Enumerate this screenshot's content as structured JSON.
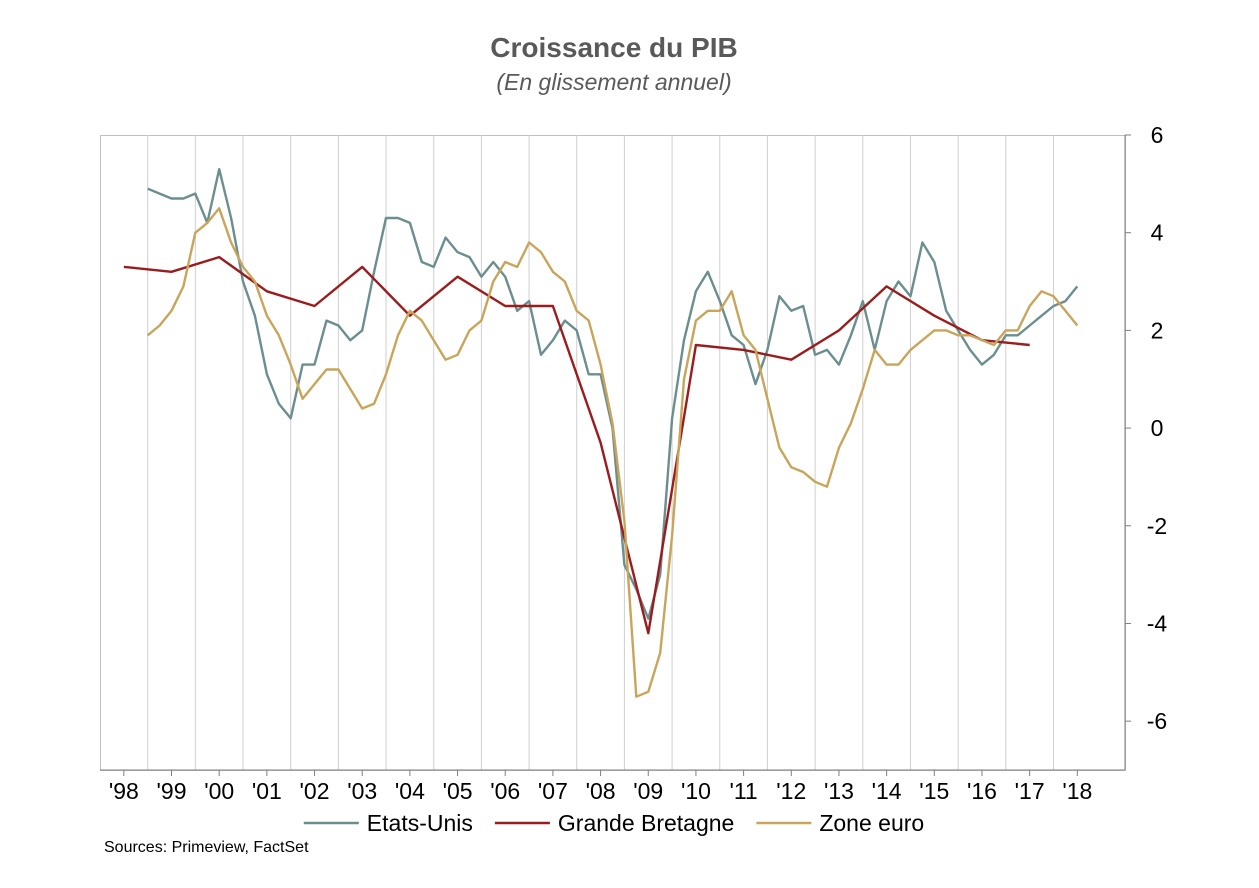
{
  "chart_data": {
    "type": "line",
    "title": "Croissance du PIB",
    "subtitle": "(En glissement annuel)",
    "source": "Sources: Primeview, FactSet",
    "xlabel": "",
    "ylabel": "",
    "x_range": [
      1997.5,
      2019.0
    ],
    "ylim": [
      -7,
      6
    ],
    "y_ticks": [
      6,
      4,
      2,
      0,
      -2,
      -4,
      -6
    ],
    "y_axis_position": "right",
    "x_tick_labels": [
      {
        "label": "'98",
        "x": 1998
      },
      {
        "label": "'99",
        "x": 1999
      },
      {
        "label": "'00",
        "x": 2000
      },
      {
        "label": "'01",
        "x": 2001
      },
      {
        "label": "'02",
        "x": 2002
      },
      {
        "label": "'03",
        "x": 2003
      },
      {
        "label": "'04",
        "x": 2004
      },
      {
        "label": "'05",
        "x": 2005
      },
      {
        "label": "'06",
        "x": 2006
      },
      {
        "label": "'07",
        "x": 2007
      },
      {
        "label": "'08",
        "x": 2008
      },
      {
        "label": "'09",
        "x": 2009
      },
      {
        "label": "'10",
        "x": 2010
      },
      {
        "label": "'11",
        "x": 2011
      },
      {
        "label": "'12",
        "x": 2012
      },
      {
        "label": "'13",
        "x": 2013
      },
      {
        "label": "'14",
        "x": 2014
      },
      {
        "label": "'15",
        "x": 2015
      },
      {
        "label": "'16",
        "x": 2016
      },
      {
        "label": "'17",
        "x": 2017
      },
      {
        "label": "'18",
        "x": 2018
      }
    ],
    "vertical_gridlines_at": [
      1998.5,
      1999.5,
      2000.5,
      2001.5,
      2002.5,
      2003.5,
      2004.5,
      2005.5,
      2006.5,
      2007.5,
      2008.5,
      2009.5,
      2010.5,
      2011.5,
      2012.5,
      2013.5,
      2014.5,
      2015.5,
      2016.5,
      2017.5
    ],
    "legend_position": "bottom",
    "series": [
      {
        "name": "Etats-Unis",
        "color": "#6B8E8E",
        "points": [
          [
            1998.5,
            4.9
          ],
          [
            1998.75,
            4.8
          ],
          [
            1999.0,
            4.7
          ],
          [
            1999.25,
            4.7
          ],
          [
            1999.5,
            4.8
          ],
          [
            1999.75,
            4.2
          ],
          [
            2000.0,
            5.3
          ],
          [
            2000.25,
            4.3
          ],
          [
            2000.5,
            3.0
          ],
          [
            2000.75,
            2.3
          ],
          [
            2001.0,
            1.1
          ],
          [
            2001.25,
            0.5
          ],
          [
            2001.5,
            0.2
          ],
          [
            2001.75,
            1.3
          ],
          [
            2002.0,
            1.3
          ],
          [
            2002.25,
            2.2
          ],
          [
            2002.5,
            2.1
          ],
          [
            2002.75,
            1.8
          ],
          [
            2003.0,
            2.0
          ],
          [
            2003.25,
            3.2
          ],
          [
            2003.5,
            4.3
          ],
          [
            2003.75,
            4.3
          ],
          [
            2004.0,
            4.2
          ],
          [
            2004.25,
            3.4
          ],
          [
            2004.5,
            3.3
          ],
          [
            2004.75,
            3.9
          ],
          [
            2005.0,
            3.6
          ],
          [
            2005.25,
            3.5
          ],
          [
            2005.5,
            3.1
          ],
          [
            2005.75,
            3.4
          ],
          [
            2006.0,
            3.1
          ],
          [
            2006.25,
            2.4
          ],
          [
            2006.5,
            2.6
          ],
          [
            2006.75,
            1.5
          ],
          [
            2007.0,
            1.8
          ],
          [
            2007.25,
            2.2
          ],
          [
            2007.5,
            2.0
          ],
          [
            2007.75,
            1.1
          ],
          [
            2008.0,
            1.1
          ],
          [
            2008.25,
            0.0
          ],
          [
            2008.5,
            -2.8
          ],
          [
            2008.75,
            -3.3
          ],
          [
            2009.0,
            -3.9
          ],
          [
            2009.25,
            -3.0
          ],
          [
            2009.5,
            0.2
          ],
          [
            2009.75,
            1.8
          ],
          [
            2010.0,
            2.8
          ],
          [
            2010.25,
            3.2
          ],
          [
            2010.5,
            2.6
          ],
          [
            2010.75,
            1.9
          ],
          [
            2011.0,
            1.7
          ],
          [
            2011.25,
            0.9
          ],
          [
            2011.5,
            1.6
          ],
          [
            2011.75,
            2.7
          ],
          [
            2012.0,
            2.4
          ],
          [
            2012.25,
            2.5
          ],
          [
            2012.5,
            1.5
          ],
          [
            2012.75,
            1.6
          ],
          [
            2013.0,
            1.3
          ],
          [
            2013.25,
            1.9
          ],
          [
            2013.5,
            2.6
          ],
          [
            2013.75,
            1.6
          ],
          [
            2014.0,
            2.6
          ],
          [
            2014.25,
            3.0
          ],
          [
            2014.5,
            2.7
          ],
          [
            2014.75,
            3.8
          ],
          [
            2015.0,
            3.4
          ],
          [
            2015.25,
            2.4
          ],
          [
            2015.5,
            2.0
          ],
          [
            2015.75,
            1.6
          ],
          [
            2016.0,
            1.3
          ],
          [
            2016.25,
            1.5
          ],
          [
            2016.5,
            1.9
          ],
          [
            2016.75,
            1.9
          ],
          [
            2017.0,
            2.1
          ],
          [
            2017.25,
            2.3
          ],
          [
            2017.5,
            2.5
          ],
          [
            2017.75,
            2.6
          ],
          [
            2018.0,
            2.9
          ]
        ]
      },
      {
        "name": "Grande Bretagne",
        "color": "#9B1C1C",
        "points": [
          [
            1998.0,
            3.3
          ],
          [
            1999.0,
            3.2
          ],
          [
            2000.0,
            3.5
          ],
          [
            2001.0,
            2.8
          ],
          [
            2002.0,
            2.5
          ],
          [
            2003.0,
            3.3
          ],
          [
            2004.0,
            2.3
          ],
          [
            2005.0,
            3.1
          ],
          [
            2006.0,
            2.5
          ],
          [
            2007.0,
            2.5
          ],
          [
            2008.0,
            -0.3
          ],
          [
            2009.0,
            -4.2
          ],
          [
            2010.0,
            1.7
          ],
          [
            2011.0,
            1.6
          ],
          [
            2012.0,
            1.4
          ],
          [
            2013.0,
            2.0
          ],
          [
            2014.0,
            2.9
          ],
          [
            2015.0,
            2.3
          ],
          [
            2016.0,
            1.8
          ],
          [
            2017.0,
            1.7
          ]
        ]
      },
      {
        "name": "Zone euro",
        "color": "#C8A55A",
        "points": [
          [
            1998.5,
            1.9
          ],
          [
            1998.75,
            2.1
          ],
          [
            1999.0,
            2.4
          ],
          [
            1999.25,
            2.9
          ],
          [
            1999.5,
            4.0
          ],
          [
            1999.75,
            4.2
          ],
          [
            2000.0,
            4.5
          ],
          [
            2000.25,
            3.8
          ],
          [
            2000.5,
            3.3
          ],
          [
            2000.75,
            3.0
          ],
          [
            2001.0,
            2.3
          ],
          [
            2001.25,
            1.9
          ],
          [
            2001.5,
            1.3
          ],
          [
            2001.75,
            0.6
          ],
          [
            2002.0,
            0.9
          ],
          [
            2002.25,
            1.2
          ],
          [
            2002.5,
            1.2
          ],
          [
            2002.75,
            0.8
          ],
          [
            2003.0,
            0.4
          ],
          [
            2003.25,
            0.5
          ],
          [
            2003.5,
            1.1
          ],
          [
            2003.75,
            1.9
          ],
          [
            2004.0,
            2.4
          ],
          [
            2004.25,
            2.2
          ],
          [
            2004.5,
            1.8
          ],
          [
            2004.75,
            1.4
          ],
          [
            2005.0,
            1.5
          ],
          [
            2005.25,
            2.0
          ],
          [
            2005.5,
            2.2
          ],
          [
            2005.75,
            3.0
          ],
          [
            2006.0,
            3.4
          ],
          [
            2006.25,
            3.3
          ],
          [
            2006.5,
            3.8
          ],
          [
            2006.75,
            3.6
          ],
          [
            2007.0,
            3.2
          ],
          [
            2007.25,
            3.0
          ],
          [
            2007.5,
            2.4
          ],
          [
            2007.75,
            2.2
          ],
          [
            2008.0,
            1.3
          ],
          [
            2008.25,
            0.1
          ],
          [
            2008.5,
            -1.9
          ],
          [
            2008.75,
            -5.5
          ],
          [
            2009.0,
            -5.4
          ],
          [
            2009.25,
            -4.6
          ],
          [
            2009.5,
            -2.2
          ],
          [
            2009.75,
            1.0
          ],
          [
            2010.0,
            2.2
          ],
          [
            2010.25,
            2.4
          ],
          [
            2010.5,
            2.4
          ],
          [
            2010.75,
            2.8
          ],
          [
            2011.0,
            1.9
          ],
          [
            2011.25,
            1.6
          ],
          [
            2011.5,
            0.6
          ],
          [
            2011.75,
            -0.4
          ],
          [
            2012.0,
            -0.8
          ],
          [
            2012.25,
            -0.9
          ],
          [
            2012.5,
            -1.1
          ],
          [
            2012.75,
            -1.2
          ],
          [
            2013.0,
            -0.4
          ],
          [
            2013.25,
            0.1
          ],
          [
            2013.5,
            0.8
          ],
          [
            2013.75,
            1.6
          ],
          [
            2014.0,
            1.3
          ],
          [
            2014.25,
            1.3
          ],
          [
            2014.5,
            1.6
          ],
          [
            2014.75,
            1.8
          ],
          [
            2015.0,
            2.0
          ],
          [
            2015.25,
            2.0
          ],
          [
            2015.5,
            1.9
          ],
          [
            2015.75,
            1.9
          ],
          [
            2016.0,
            1.8
          ],
          [
            2016.25,
            1.7
          ],
          [
            2016.5,
            2.0
          ],
          [
            2016.75,
            2.0
          ],
          [
            2017.0,
            2.5
          ],
          [
            2017.25,
            2.8
          ],
          [
            2017.5,
            2.7
          ],
          [
            2017.75,
            2.4
          ],
          [
            2018.0,
            2.1
          ]
        ]
      }
    ]
  }
}
